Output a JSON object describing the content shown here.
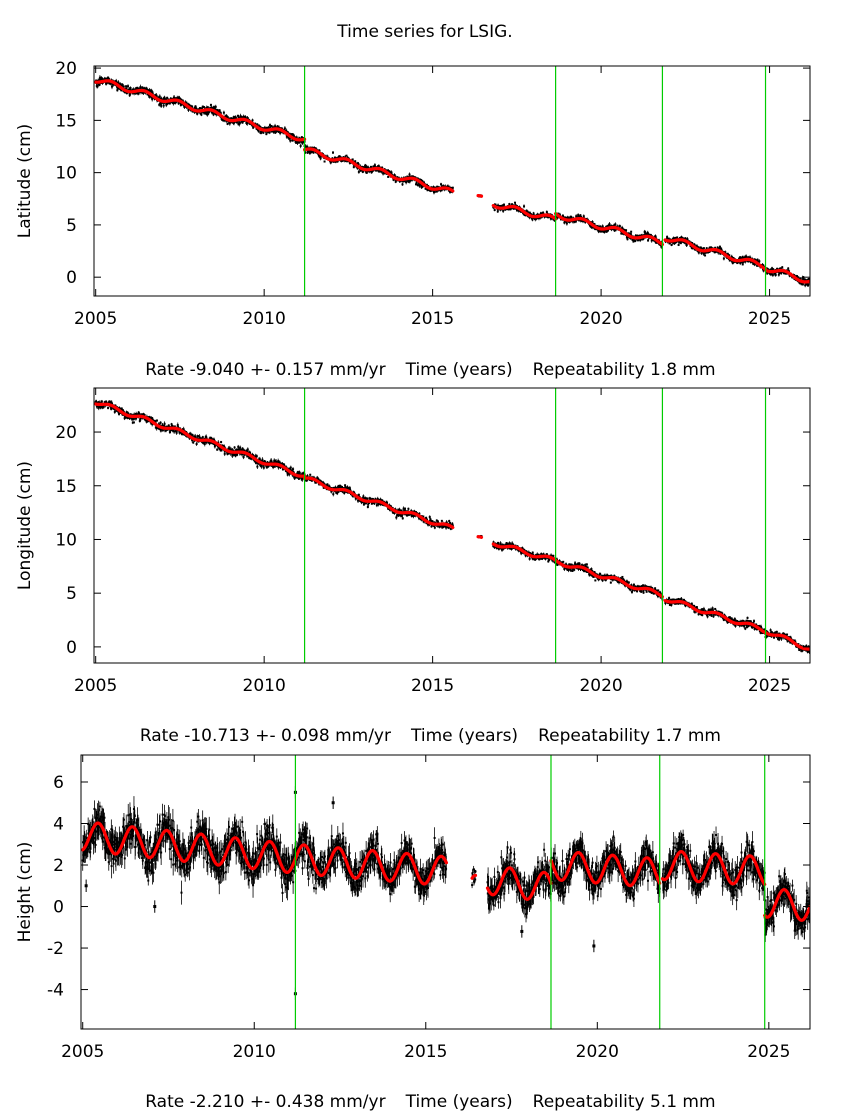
{
  "page": {
    "title": "Time series for LSIG."
  },
  "chart_data": [
    {
      "type": "scatter",
      "id": "latitude",
      "title": "Time series for LSIG.",
      "xlabel": "Time (years)",
      "ylabel": "Latitude (cm)",
      "rate_text": "Rate -9.040 +- 0.157 mm/yr",
      "repeat_text": "Repeatability 1.8 mm",
      "xlim": [
        2004.95,
        2026.2
      ],
      "ylim": [
        -1.8,
        20.2
      ],
      "xticks": [
        2005,
        2010,
        2015,
        2020,
        2025
      ],
      "xtick_labels": [
        "2005",
        "2010",
        "2015",
        "2020",
        "2025"
      ],
      "yticks": [
        0,
        5,
        10,
        15,
        20
      ],
      "ytick_labels": [
        "0",
        "5",
        "10",
        "15",
        "20"
      ],
      "break_lines": [
        2011.2,
        2018.65,
        2021.82,
        2024.88
      ],
      "colors": {
        "data": "#000000",
        "model": "#ff0000",
        "breaks": "#00cc00"
      },
      "segments": [
        {
          "start": 2005.0,
          "end": 2011.2,
          "y_start": 18.9,
          "y_end": 13.2,
          "noise": 0.35
        },
        {
          "start": 2011.2,
          "end": 2015.6,
          "y_start": 12.2,
          "y_end": 8.1,
          "noise": 0.3
        },
        {
          "start": 2016.35,
          "end": 2016.45,
          "y_start": 7.6,
          "y_end": 7.5,
          "noise": 0.1
        },
        {
          "start": 2016.8,
          "end": 2018.65,
          "y_start": 7.0,
          "y_end": 5.5,
          "noise": 0.3
        },
        {
          "start": 2018.65,
          "end": 2021.82,
          "y_start": 6.0,
          "y_end": 3.3,
          "noise": 0.3
        },
        {
          "start": 2021.9,
          "end": 2024.88,
          "y_start": 3.8,
          "y_end": 1.0,
          "noise": 0.3
        },
        {
          "start": 2024.88,
          "end": 2026.2,
          "y_start": 0.9,
          "y_end": -0.4,
          "noise": 0.3
        }
      ],
      "seasonal_amplitude": 0.25
    },
    {
      "type": "scatter",
      "id": "longitude",
      "xlabel": "Time (years)",
      "ylabel": "Longitude (cm)",
      "rate_text": "Rate -10.713 +- 0.098 mm/yr",
      "repeat_text": "Repeatability 1.7 mm",
      "xlim": [
        2004.95,
        2026.2
      ],
      "ylim": [
        -1.5,
        24.1
      ],
      "xticks": [
        2005,
        2010,
        2015,
        2020,
        2025
      ],
      "xtick_labels": [
        "2005",
        "2010",
        "2015",
        "2020",
        "2025"
      ],
      "yticks": [
        0,
        5,
        10,
        15,
        20
      ],
      "ytick_labels": [
        "0",
        "5",
        "10",
        "15",
        "20"
      ],
      "break_lines": [
        2011.2,
        2018.65,
        2021.82,
        2024.88
      ],
      "colors": {
        "data": "#000000",
        "model": "#ff0000",
        "breaks": "#00cc00"
      },
      "segments": [
        {
          "start": 2005.0,
          "end": 2011.2,
          "y_start": 22.8,
          "y_end": 15.9,
          "noise": 0.35
        },
        {
          "start": 2011.2,
          "end": 2015.6,
          "y_start": 15.7,
          "y_end": 11.0,
          "noise": 0.3
        },
        {
          "start": 2016.35,
          "end": 2016.45,
          "y_start": 10.1,
          "y_end": 10.0,
          "noise": 0.1
        },
        {
          "start": 2016.8,
          "end": 2018.65,
          "y_start": 9.7,
          "y_end": 8.0,
          "noise": 0.3
        },
        {
          "start": 2018.65,
          "end": 2021.82,
          "y_start": 8.0,
          "y_end": 4.8,
          "noise": 0.3
        },
        {
          "start": 2021.9,
          "end": 2024.88,
          "y_start": 4.5,
          "y_end": 1.5,
          "noise": 0.3
        },
        {
          "start": 2024.88,
          "end": 2026.2,
          "y_start": 1.5,
          "y_end": -0.2,
          "noise": 0.3
        }
      ],
      "seasonal_amplitude": 0.2
    },
    {
      "type": "scatter",
      "id": "height",
      "xlabel": "Time (years)",
      "ylabel": "Height (cm)",
      "rate_text": "Rate -2.210 +- 0.438 mm/yr",
      "repeat_text": "Repeatability 5.1 mm",
      "xlim": [
        2004.95,
        2026.2
      ],
      "ylim": [
        -5.9,
        7.3
      ],
      "xticks": [
        2005,
        2010,
        2015,
        2020,
        2025
      ],
      "xtick_labels": [
        "2005",
        "2010",
        "2015",
        "2020",
        "2025"
      ],
      "yticks": [
        -4,
        -2,
        0,
        2,
        4,
        6
      ],
      "ytick_labels": [
        "-4",
        "-2",
        "0",
        "2",
        "4",
        "6"
      ],
      "break_lines": [
        2011.2,
        2018.65,
        2021.82,
        2024.88
      ],
      "colors": {
        "data": "#000000",
        "model": "#ff0000",
        "breaks": "#00cc00"
      },
      "segments": [
        {
          "start": 2005.0,
          "end": 2011.2,
          "y_start": 3.4,
          "y_end": 2.3,
          "noise": 0.9
        },
        {
          "start": 2011.2,
          "end": 2015.6,
          "y_start": 2.3,
          "y_end": 1.7,
          "noise": 0.8
        },
        {
          "start": 2016.35,
          "end": 2016.45,
          "y_start": 0.8,
          "y_end": 0.8,
          "noise": 0.3
        },
        {
          "start": 2016.8,
          "end": 2018.65,
          "y_start": 1.3,
          "y_end": 0.9,
          "noise": 0.8
        },
        {
          "start": 2018.65,
          "end": 2021.82,
          "y_start": 2.0,
          "y_end": 1.6,
          "noise": 0.8
        },
        {
          "start": 2021.9,
          "end": 2024.88,
          "y_start": 2.0,
          "y_end": 1.7,
          "noise": 0.8
        },
        {
          "start": 2024.88,
          "end": 2026.2,
          "y_start": 0.2,
          "y_end": 0.0,
          "noise": 0.8
        }
      ],
      "seasonal_amplitude": 0.7,
      "outliers": [
        {
          "x": 2011.2,
          "y": -4.2
        },
        {
          "x": 2011.2,
          "y": 5.5
        },
        {
          "x": 2005.1,
          "y": 1.0
        },
        {
          "x": 2007.1,
          "y": 0.0
        },
        {
          "x": 2012.3,
          "y": 5.0
        },
        {
          "x": 2019.9,
          "y": -1.9
        },
        {
          "x": 2017.8,
          "y": -1.2
        }
      ]
    }
  ]
}
